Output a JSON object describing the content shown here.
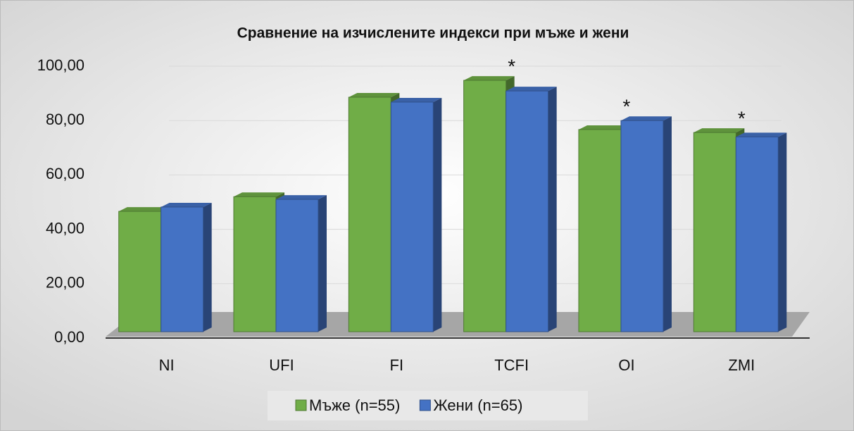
{
  "chart_data": {
    "type": "bar",
    "title": "Сравнение на изчислените индекси при мъже и жени",
    "categories": [
      "NI",
      "UFI",
      "FI",
      "TCFI",
      "OI",
      "ZMI"
    ],
    "series": [
      {
        "name": "Мъже (n=55)",
        "color": "#70ad47",
        "values": [
          46.6,
          52,
          88.6,
          94.8,
          76.7,
          75.6
        ]
      },
      {
        "name": "Жени (n=65)",
        "color": "#4472c4",
        "values": [
          48.2,
          51,
          86.8,
          90.9,
          80,
          74
        ]
      }
    ],
    "ylim": [
      0,
      100
    ],
    "yticks": [
      {
        "value": 0,
        "label": "0,00"
      },
      {
        "value": 20,
        "label": "20,00"
      },
      {
        "value": 40,
        "label": "40,00"
      },
      {
        "value": 60,
        "label": "60,00"
      },
      {
        "value": 80,
        "label": "80,00"
      },
      {
        "value": 100,
        "label": "100,00"
      }
    ],
    "grid": true,
    "legend": "bottom",
    "annotations": [
      {
        "text": "*",
        "category": "TCFI"
      },
      {
        "text": "*",
        "category": "OI"
      },
      {
        "text": "*",
        "category": "ZMI"
      }
    ]
  }
}
